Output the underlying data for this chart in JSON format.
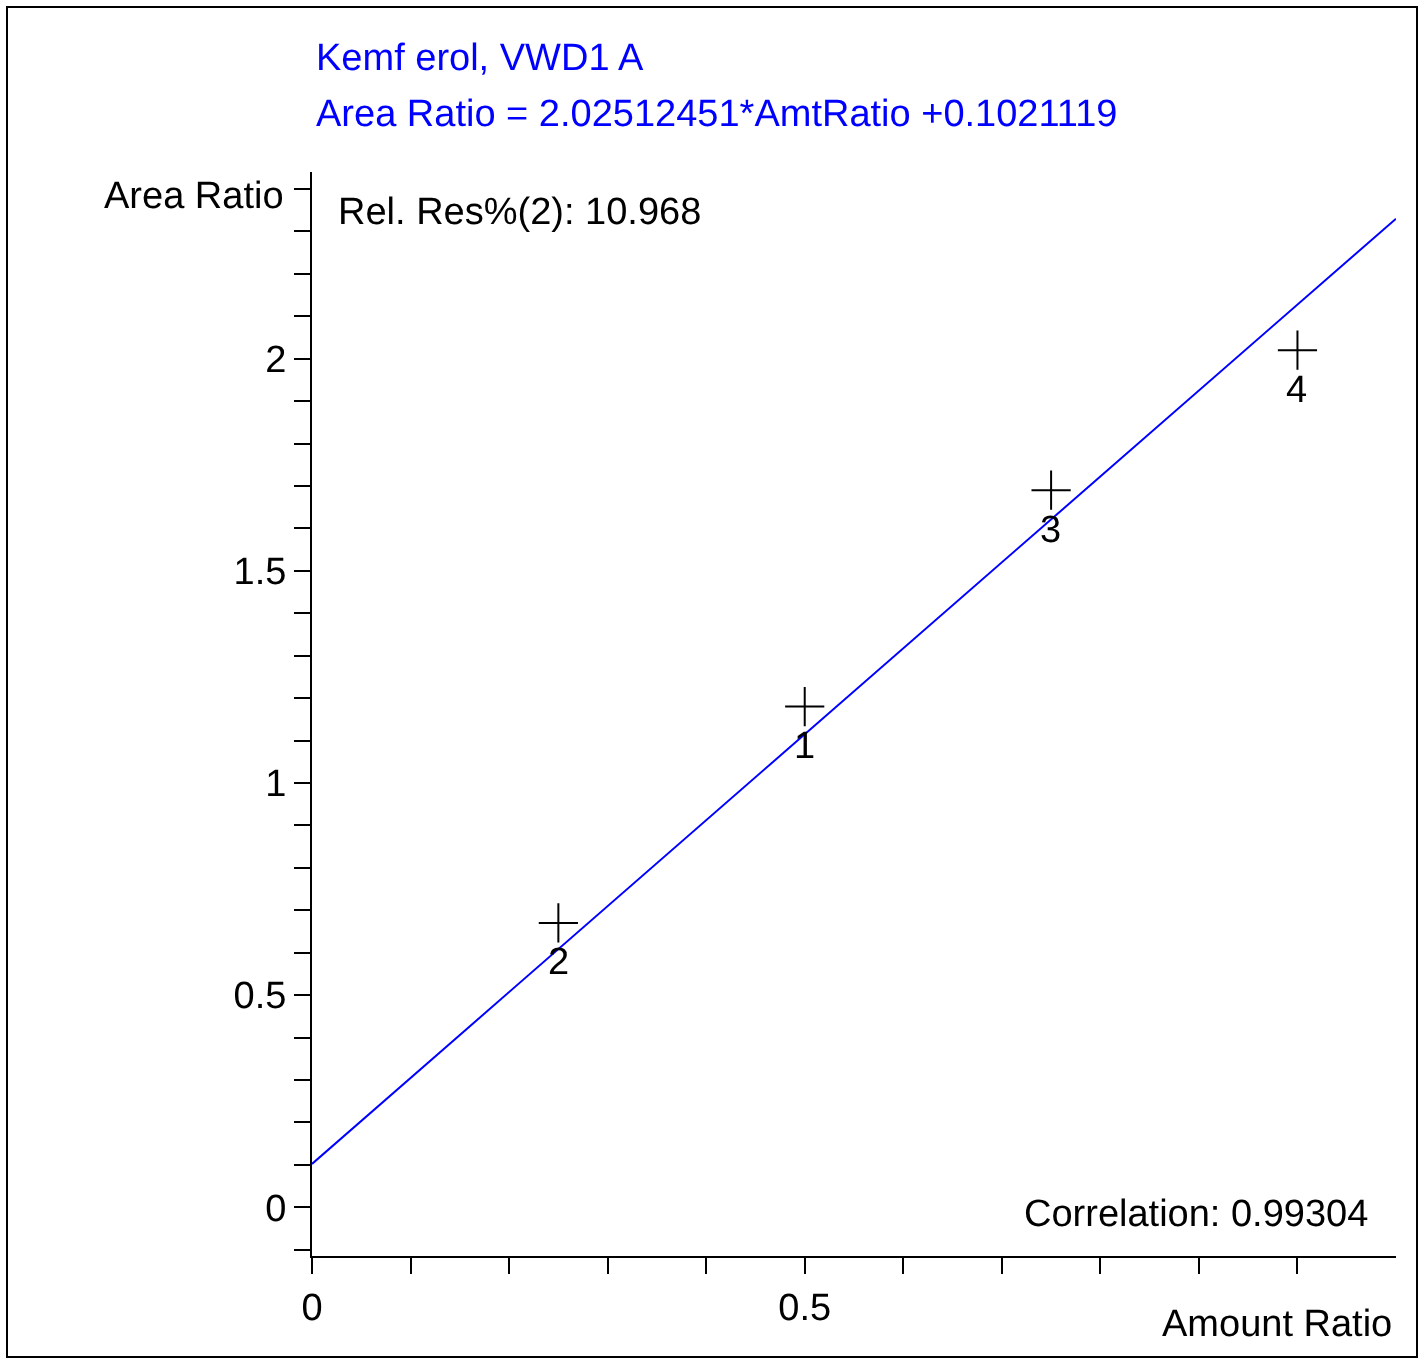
{
  "chart_data": {
    "type": "scatter",
    "title": "Kemf erol, VWD1 A",
    "subtitle": "Area Ratio = 2.02512451*AmtRatio +0.1021119",
    "xlabel": "Amount Ratio",
    "ylabel": "Area Ratio",
    "x": [
      0.5,
      0.25,
      0.75,
      1.0
    ],
    "series": [
      {
        "color": "#000000",
        "marker": "cross",
        "values": [
          1.18,
          0.67,
          1.69,
          2.02
        ]
      },
      {
        "type": "line",
        "color": "#0000ff",
        "x": [
          0,
          1.1
        ],
        "values": [
          0.102,
          2.33
        ]
      }
    ],
    "annotations": [
      {
        "text": "1",
        "x": 0.5,
        "y": 1.18
      },
      {
        "text": "2",
        "x": 0.25,
        "y": 0.67
      },
      {
        "text": "3",
        "x": 0.75,
        "y": 1.69
      },
      {
        "text": "4",
        "x": 1.0,
        "y": 2.02
      },
      "Rel. Res%(2): 10.968",
      "Correlation: 0.99304"
    ],
    "xlim": [
      0,
      1.1
    ],
    "ylim": [
      -0.115,
      2.44
    ],
    "xticks": [
      0,
      {
        "value": 0.1,
        "label": null
      },
      {
        "value": 0.2,
        "label": null
      },
      {
        "value": 0.3,
        "label": null
      },
      {
        "value": 0.4,
        "label": null
      },
      0.5,
      {
        "value": 0.6,
        "label": null
      },
      {
        "value": 0.7,
        "label": null
      },
      {
        "value": 0.8,
        "label": null
      },
      {
        "value": 0.9,
        "label": null
      },
      {
        "value": 1,
        "label": null
      }
    ],
    "yticks": [
      {
        "value": -0.1,
        "label": null
      },
      0,
      {
        "value": 0.1,
        "label": null
      },
      {
        "value": 0.2,
        "label": null
      },
      {
        "value": 0.3,
        "label": null
      },
      {
        "value": 0.4,
        "label": null
      },
      0.5,
      {
        "value": 0.6,
        "label": null
      },
      {
        "value": 0.7,
        "label": null
      },
      {
        "value": 0.8,
        "label": null
      },
      {
        "value": 0.9,
        "label": null
      },
      1,
      {
        "value": 1.1,
        "label": null
      },
      {
        "value": 1.2,
        "label": null
      },
      {
        "value": 1.3,
        "label": null
      },
      {
        "value": 1.4,
        "label": null
      },
      1.5,
      {
        "value": 1.6,
        "label": null
      },
      {
        "value": 1.7,
        "label": null
      },
      {
        "value": 1.8,
        "label": null
      },
      {
        "value": 1.9,
        "label": null
      },
      2,
      {
        "value": 2.1,
        "label": null
      },
      {
        "value": 2.2,
        "label": null
      },
      {
        "value": 2.3,
        "label": null
      },
      {
        "value": 2.4,
        "label": null
      }
    ]
  }
}
